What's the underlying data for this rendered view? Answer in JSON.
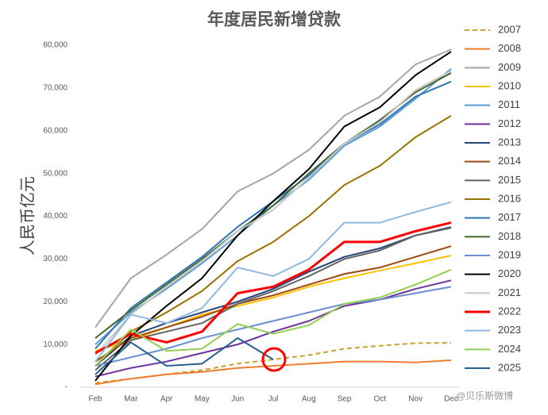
{
  "chart_data": {
    "type": "line",
    "title": "年度居民新增贷款",
    "y_label": "人民币亿元",
    "watermark": "@贝乐斯微博",
    "categories": [
      "Feb",
      "Mar",
      "Apr",
      "May",
      "Jun",
      "Jul",
      "Aug",
      "Sep",
      "Oct",
      "Nov",
      "Dec"
    ],
    "ylim": [
      0,
      80000
    ],
    "yticks": [
      {
        "value": 0,
        "label": "-"
      },
      {
        "value": 10000,
        "label": "10,000"
      },
      {
        "value": 20000,
        "label": "20,000"
      },
      {
        "value": 30000,
        "label": "30,000"
      },
      {
        "value": 40000,
        "label": "40,000"
      },
      {
        "value": 50000,
        "label": "50,000"
      },
      {
        "value": 60000,
        "label": "60,000"
      },
      {
        "value": 70000,
        "label": "70,000"
      },
      {
        "value": 80000,
        "label": "80,000"
      }
    ],
    "legend": "right",
    "series": [
      {
        "name": "2007",
        "color": "#c9a227",
        "dashed": true,
        "values": [
          1000,
          2000,
          3000,
          4000,
          5500,
          6500,
          7500,
          9000,
          9700,
          10300,
          10400
        ]
      },
      {
        "name": "2008",
        "color": "#ed7d31",
        "values": [
          700,
          2000,
          3000,
          3600,
          4500,
          5000,
          5500,
          6000,
          6000,
          5800,
          6300
        ]
      },
      {
        "name": "2009",
        "color": "#a5a5a5",
        "values": [
          14000,
          25500,
          31000,
          37000,
          45800,
          50000,
          55500,
          63500,
          68000,
          75500,
          79000
        ]
      },
      {
        "name": "2010",
        "color": "#ffc000",
        "values": [
          8500,
          11000,
          14000,
          17000,
          19000,
          21000,
          23500,
          25500,
          27300,
          29000,
          30800
        ]
      },
      {
        "name": "2011",
        "color": "#5b9bd5",
        "values": [
          10000,
          17500,
          23000,
          29000,
          35500,
          42500,
          48500,
          56500,
          61000,
          67500,
          74500
        ]
      },
      {
        "name": "2012",
        "color": "#7030a0",
        "values": [
          2500,
          4500,
          6000,
          8000,
          10000,
          13000,
          15500,
          19000,
          20500,
          23000,
          25000
        ]
      },
      {
        "name": "2013",
        "color": "#264478",
        "values": [
          5000,
          12000,
          15000,
          17500,
          20000,
          23000,
          27000,
          30500,
          32500,
          35500,
          37300
        ]
      },
      {
        "name": "2014",
        "color": "#9e480e",
        "values": [
          6000,
          11500,
          14000,
          16500,
          19500,
          21500,
          24000,
          26500,
          28000,
          30500,
          33000
        ]
      },
      {
        "name": "2015",
        "color": "#636363",
        "values": [
          4000,
          11000,
          13000,
          15000,
          19500,
          22500,
          26000,
          30000,
          32000,
          35500,
          37500
        ]
      },
      {
        "name": "2016",
        "color": "#997300",
        "values": [
          5000,
          13000,
          17500,
          22500,
          29500,
          34000,
          40000,
          47300,
          51800,
          58500,
          63500
        ]
      },
      {
        "name": "2017",
        "color": "#2e75b6",
        "values": [
          9000,
          18500,
          24500,
          30500,
          37500,
          43500,
          49500,
          57000,
          61500,
          68000,
          71500
        ]
      },
      {
        "name": "2018",
        "color": "#43682b",
        "values": [
          11500,
          18000,
          24000,
          30000,
          36500,
          42500,
          50000,
          57000,
          62500,
          69000,
          73500
        ]
      },
      {
        "name": "2019",
        "color": "#698ed0",
        "values": [
          5000,
          7000,
          9000,
          11500,
          13500,
          15500,
          17500,
          19500,
          20500,
          22000,
          23500
        ]
      },
      {
        "name": "2020",
        "color": "#000000",
        "values": [
          1500,
          12000,
          19000,
          25500,
          35500,
          43500,
          51000,
          61000,
          65500,
          73000,
          78500
        ]
      },
      {
        "name": "2021",
        "color": "#c8c8c8",
        "values": [
          7500,
          17000,
          23500,
          29500,
          36500,
          41500,
          49000,
          57000,
          62000,
          69500,
          74000
        ]
      },
      {
        "name": "2022",
        "color": "#ff0000",
        "width": 3,
        "values": [
          8000,
          12500,
          10500,
          13000,
          22000,
          23500,
          27500,
          34000,
          34000,
          36500,
          38500
        ]
      },
      {
        "name": "2023",
        "color": "#8fb8e3",
        "values": [
          6000,
          17000,
          15000,
          18500,
          28000,
          26000,
          30000,
          38500,
          38500,
          41000,
          43300
        ]
      },
      {
        "name": "2024",
        "color": "#92d050",
        "values": [
          5000,
          13500,
          8500,
          9000,
          14800,
          12500,
          14500,
          19500,
          21000,
          24000,
          27500
        ]
      },
      {
        "name": "2025",
        "color": "#255e91",
        "values": [
          3000,
          10500,
          5000,
          5500,
          11500,
          6500,
          null,
          null,
          null,
          null,
          null
        ]
      }
    ]
  }
}
